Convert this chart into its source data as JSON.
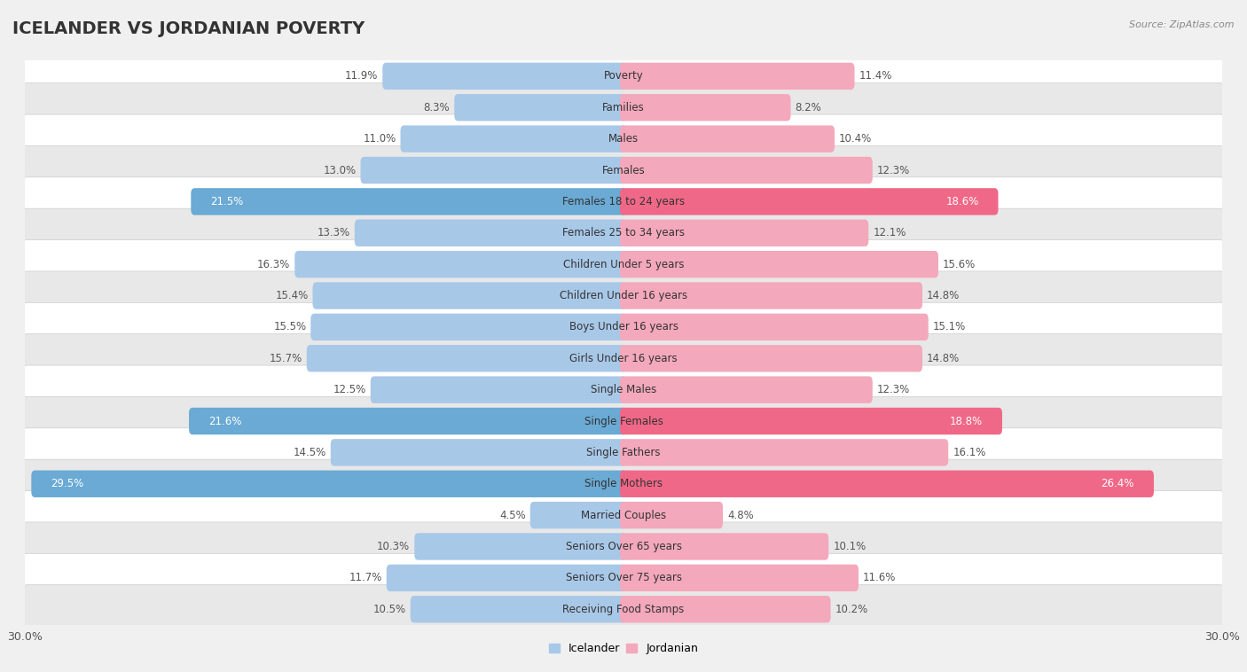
{
  "title": "ICELANDER VS JORDANIAN POVERTY",
  "source": "Source: ZipAtlas.com",
  "categories": [
    "Poverty",
    "Families",
    "Males",
    "Females",
    "Females 18 to 24 years",
    "Females 25 to 34 years",
    "Children Under 5 years",
    "Children Under 16 years",
    "Boys Under 16 years",
    "Girls Under 16 years",
    "Single Males",
    "Single Females",
    "Single Fathers",
    "Single Mothers",
    "Married Couples",
    "Seniors Over 65 years",
    "Seniors Over 75 years",
    "Receiving Food Stamps"
  ],
  "icelander": [
    11.9,
    8.3,
    11.0,
    13.0,
    21.5,
    13.3,
    16.3,
    15.4,
    15.5,
    15.7,
    12.5,
    21.6,
    14.5,
    29.5,
    4.5,
    10.3,
    11.7,
    10.5
  ],
  "jordanian": [
    11.4,
    8.2,
    10.4,
    12.3,
    18.6,
    12.1,
    15.6,
    14.8,
    15.1,
    14.8,
    12.3,
    18.8,
    16.1,
    26.4,
    4.8,
    10.1,
    11.6,
    10.2
  ],
  "icelander_color": "#a8c8e8",
  "jordanian_color": "#f4a8bc",
  "icelander_highlight_color": "#6aaad4",
  "jordanian_highlight_color": "#f06888",
  "highlight_rows": [
    4,
    11,
    13
  ],
  "axis_limit": 30.0,
  "bar_height": 0.5,
  "background_color": "#f0f0f0",
  "row_bg_even": "#ffffff",
  "row_bg_odd": "#e8e8e8",
  "legend_labels": [
    "Icelander",
    "Jordanian"
  ],
  "title_fontsize": 14,
  "label_fontsize": 8.5,
  "value_fontsize": 8.5
}
